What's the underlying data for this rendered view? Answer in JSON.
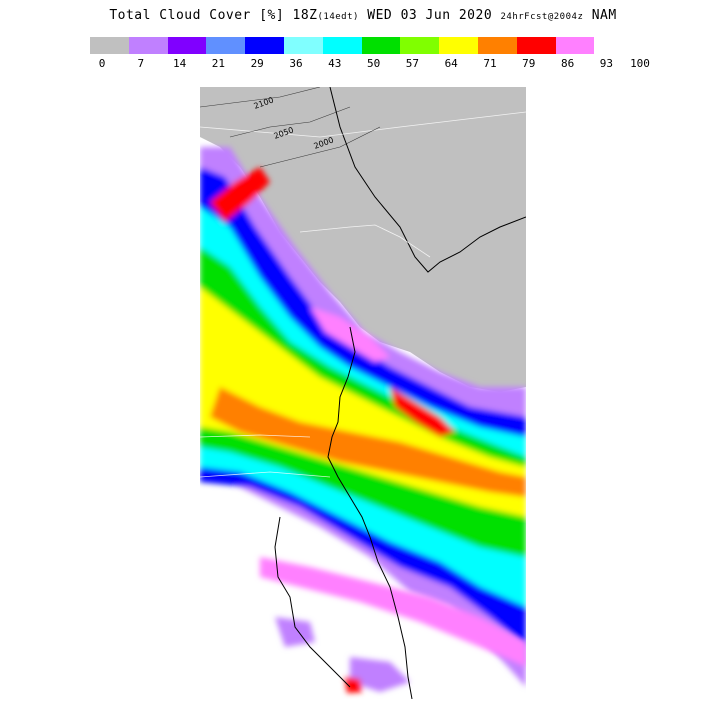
{
  "title": {
    "main": "Total Cloud Cover [%] 18Z",
    "init_note": "(14edt)",
    "date": "WED 03 Jun 2020",
    "forecast": "24hrFcst@2004z",
    "model": "NAM"
  },
  "legend": {
    "colors": [
      "#c0c0c0",
      "#c080ff",
      "#8000ff",
      "#6090ff",
      "#0000ff",
      "#80ffff",
      "#00ffff",
      "#00e000",
      "#80ff00",
      "#ffff00",
      "#ff8000",
      "#ff0000",
      "#ff80ff"
    ],
    "labels": [
      "0",
      "7",
      "14",
      "21",
      "29",
      "36",
      "43",
      "50",
      "57",
      "64",
      "71",
      "79",
      "86",
      "93",
      "100"
    ]
  },
  "map": {
    "contour_labels": [
      "2100",
      "2050",
      "2000"
    ]
  }
}
